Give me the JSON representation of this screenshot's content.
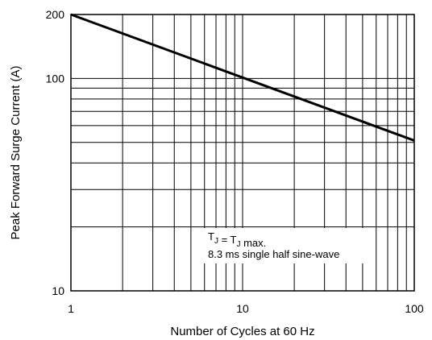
{
  "chart_data": {
    "type": "line",
    "xlabel": "Number of Cycles at 60 Hz",
    "ylabel": "Peak Forward Surge Current (A)",
    "xscale": "log",
    "yscale": "log",
    "xlim": [
      1,
      100
    ],
    "ylim": [
      10,
      200
    ],
    "grid": true,
    "x_ticks": [
      {
        "value": 1,
        "label": "1"
      },
      {
        "value": 10,
        "label": "10"
      },
      {
        "value": 100,
        "label": "100"
      }
    ],
    "y_ticks": [
      {
        "value": 10,
        "label": "10"
      },
      {
        "value": 100,
        "label": "100"
      },
      {
        "value": 200,
        "label": "200"
      }
    ],
    "series": [
      {
        "x": [
          1,
          100
        ],
        "y": [
          200,
          51
        ]
      }
    ],
    "annotation": {
      "line1_parts": [
        {
          "text": "T"
        },
        {
          "text": "J",
          "sub": true
        },
        {
          "text": " = T"
        },
        {
          "text": "J",
          "sub": true
        },
        {
          "text": " max."
        }
      ],
      "line2": "8.3 ms single half sine-wave"
    }
  }
}
